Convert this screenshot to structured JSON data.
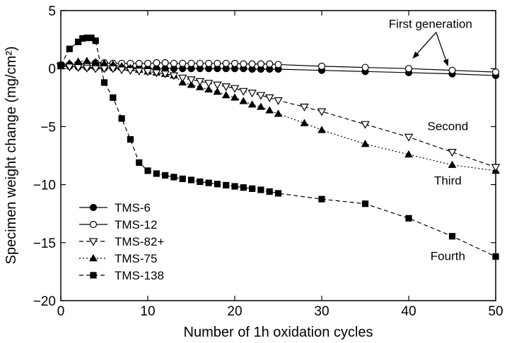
{
  "chart_data": {
    "type": "line",
    "title": "",
    "xlabel": "Number of 1h oxidation cycles",
    "ylabel": "Specimen weight change (mg/cm²)",
    "xlim": [
      0,
      50
    ],
    "ylim": [
      -20,
      5
    ],
    "xticks": [
      0,
      10,
      20,
      30,
      40,
      50
    ],
    "xtick_labels": [
      "0",
      "10",
      "20",
      "30",
      "40",
      "50"
    ],
    "yticks": [
      5,
      0,
      -5,
      -10,
      -15,
      -20
    ],
    "ytick_labels": [
      "5",
      "0",
      "−5",
      "−10",
      "−15",
      "−20"
    ],
    "grid": false,
    "legend_position": "lower-left",
    "series": [
      {
        "name": "TMS-6",
        "marker": "filled-circle",
        "line": "solid",
        "x": [
          0,
          1,
          2,
          3,
          4,
          5,
          6,
          7,
          8,
          9,
          10,
          11,
          12,
          13,
          14,
          15,
          16,
          17,
          18,
          19,
          20,
          21,
          22,
          23,
          24,
          25,
          30,
          35,
          40,
          45,
          50
        ],
        "y": [
          0.25,
          0.2,
          0.15,
          0.1,
          0.1,
          0.05,
          0.05,
          0.05,
          0.05,
          0.05,
          0.0,
          0.0,
          0.0,
          0.0,
          0.0,
          0.0,
          0.0,
          0.0,
          0.0,
          0.0,
          0.0,
          0.0,
          -0.05,
          -0.05,
          -0.05,
          -0.05,
          -0.15,
          -0.25,
          -0.35,
          -0.45,
          -0.6
        ]
      },
      {
        "name": "TMS-12",
        "marker": "open-circle",
        "line": "solid",
        "x": [
          0,
          1,
          2,
          3,
          4,
          5,
          6,
          7,
          8,
          9,
          10,
          11,
          12,
          13,
          14,
          15,
          16,
          17,
          18,
          19,
          20,
          21,
          22,
          23,
          24,
          25,
          30,
          35,
          40,
          45,
          50
        ],
        "y": [
          0.3,
          0.35,
          0.4,
          0.45,
          0.5,
          0.5,
          0.45,
          0.45,
          0.45,
          0.45,
          0.45,
          0.5,
          0.5,
          0.45,
          0.45,
          0.45,
          0.45,
          0.45,
          0.45,
          0.45,
          0.45,
          0.4,
          0.4,
          0.4,
          0.4,
          0.35,
          0.2,
          0.1,
          0.0,
          -0.15,
          -0.3
        ]
      },
      {
        "name": "TMS-82+",
        "marker": "open-triangle-down",
        "line": "dashed",
        "x": [
          0,
          1,
          2,
          3,
          4,
          5,
          6,
          7,
          8,
          9,
          10,
          11,
          12,
          13,
          14,
          15,
          16,
          17,
          18,
          19,
          20,
          21,
          22,
          23,
          24,
          25,
          28,
          30,
          35,
          40,
          45,
          50
        ],
        "y": [
          0.2,
          0.15,
          0.1,
          0.05,
          0.0,
          0.0,
          0.0,
          -0.1,
          -0.15,
          -0.2,
          -0.25,
          -0.35,
          -0.45,
          -0.6,
          -0.8,
          -0.95,
          -1.1,
          -1.25,
          -1.4,
          -1.55,
          -1.7,
          -1.95,
          -2.1,
          -2.3,
          -2.5,
          -2.75,
          -3.3,
          -3.7,
          -4.8,
          -5.9,
          -7.2,
          -8.5
        ]
      },
      {
        "name": "TMS-75",
        "marker": "filled-triangle-up",
        "line": "dotted",
        "x": [
          0,
          1,
          2,
          3,
          4,
          5,
          6,
          7,
          8,
          9,
          10,
          11,
          12,
          13,
          14,
          15,
          16,
          17,
          18,
          19,
          20,
          21,
          22,
          23,
          24,
          25,
          28,
          30,
          35,
          40,
          45,
          50
        ],
        "y": [
          0.2,
          0.45,
          0.6,
          0.65,
          0.55,
          0.45,
          0.35,
          0.2,
          0.05,
          -0.1,
          -0.25,
          -0.35,
          -0.45,
          -0.6,
          -1.2,
          -1.4,
          -1.6,
          -1.8,
          -2.0,
          -2.3,
          -2.5,
          -2.8,
          -3.1,
          -3.3,
          -3.6,
          -3.9,
          -4.7,
          -5.3,
          -6.5,
          -7.4,
          -8.3,
          -8.8
        ]
      },
      {
        "name": "TMS-138",
        "marker": "filled-square",
        "line": "dashed",
        "x": [
          0,
          1,
          2,
          2.5,
          3,
          3.5,
          4,
          5,
          6,
          7,
          8,
          9,
          10,
          11,
          12,
          13,
          14,
          15,
          16,
          17,
          18,
          19,
          20,
          21,
          22,
          23,
          24,
          25,
          30,
          35,
          40,
          45,
          50
        ],
        "y": [
          0.3,
          1.7,
          2.3,
          2.6,
          2.65,
          2.65,
          2.4,
          -1.2,
          -2.5,
          -4.3,
          -6.1,
          -8.1,
          -8.8,
          -9.05,
          -9.2,
          -9.35,
          -9.5,
          -9.6,
          -9.75,
          -9.85,
          -9.95,
          -10.05,
          -10.15,
          -10.25,
          -10.35,
          -10.45,
          -10.6,
          -10.75,
          -11.25,
          -11.65,
          -12.9,
          -14.45,
          -16.2
        ]
      }
    ],
    "annotations": [
      {
        "text": "First generation",
        "x": 42.5,
        "y": 3.5,
        "arrows_to": [
          [
            40.5,
            0.9
          ],
          [
            44.5,
            0.25
          ]
        ]
      },
      {
        "text": "Second",
        "x": 44.5,
        "y": -5.3
      },
      {
        "text": "Third",
        "x": 44.5,
        "y": -10.0
      },
      {
        "text": "Fourth",
        "x": 44.5,
        "y": -16.5
      }
    ]
  }
}
